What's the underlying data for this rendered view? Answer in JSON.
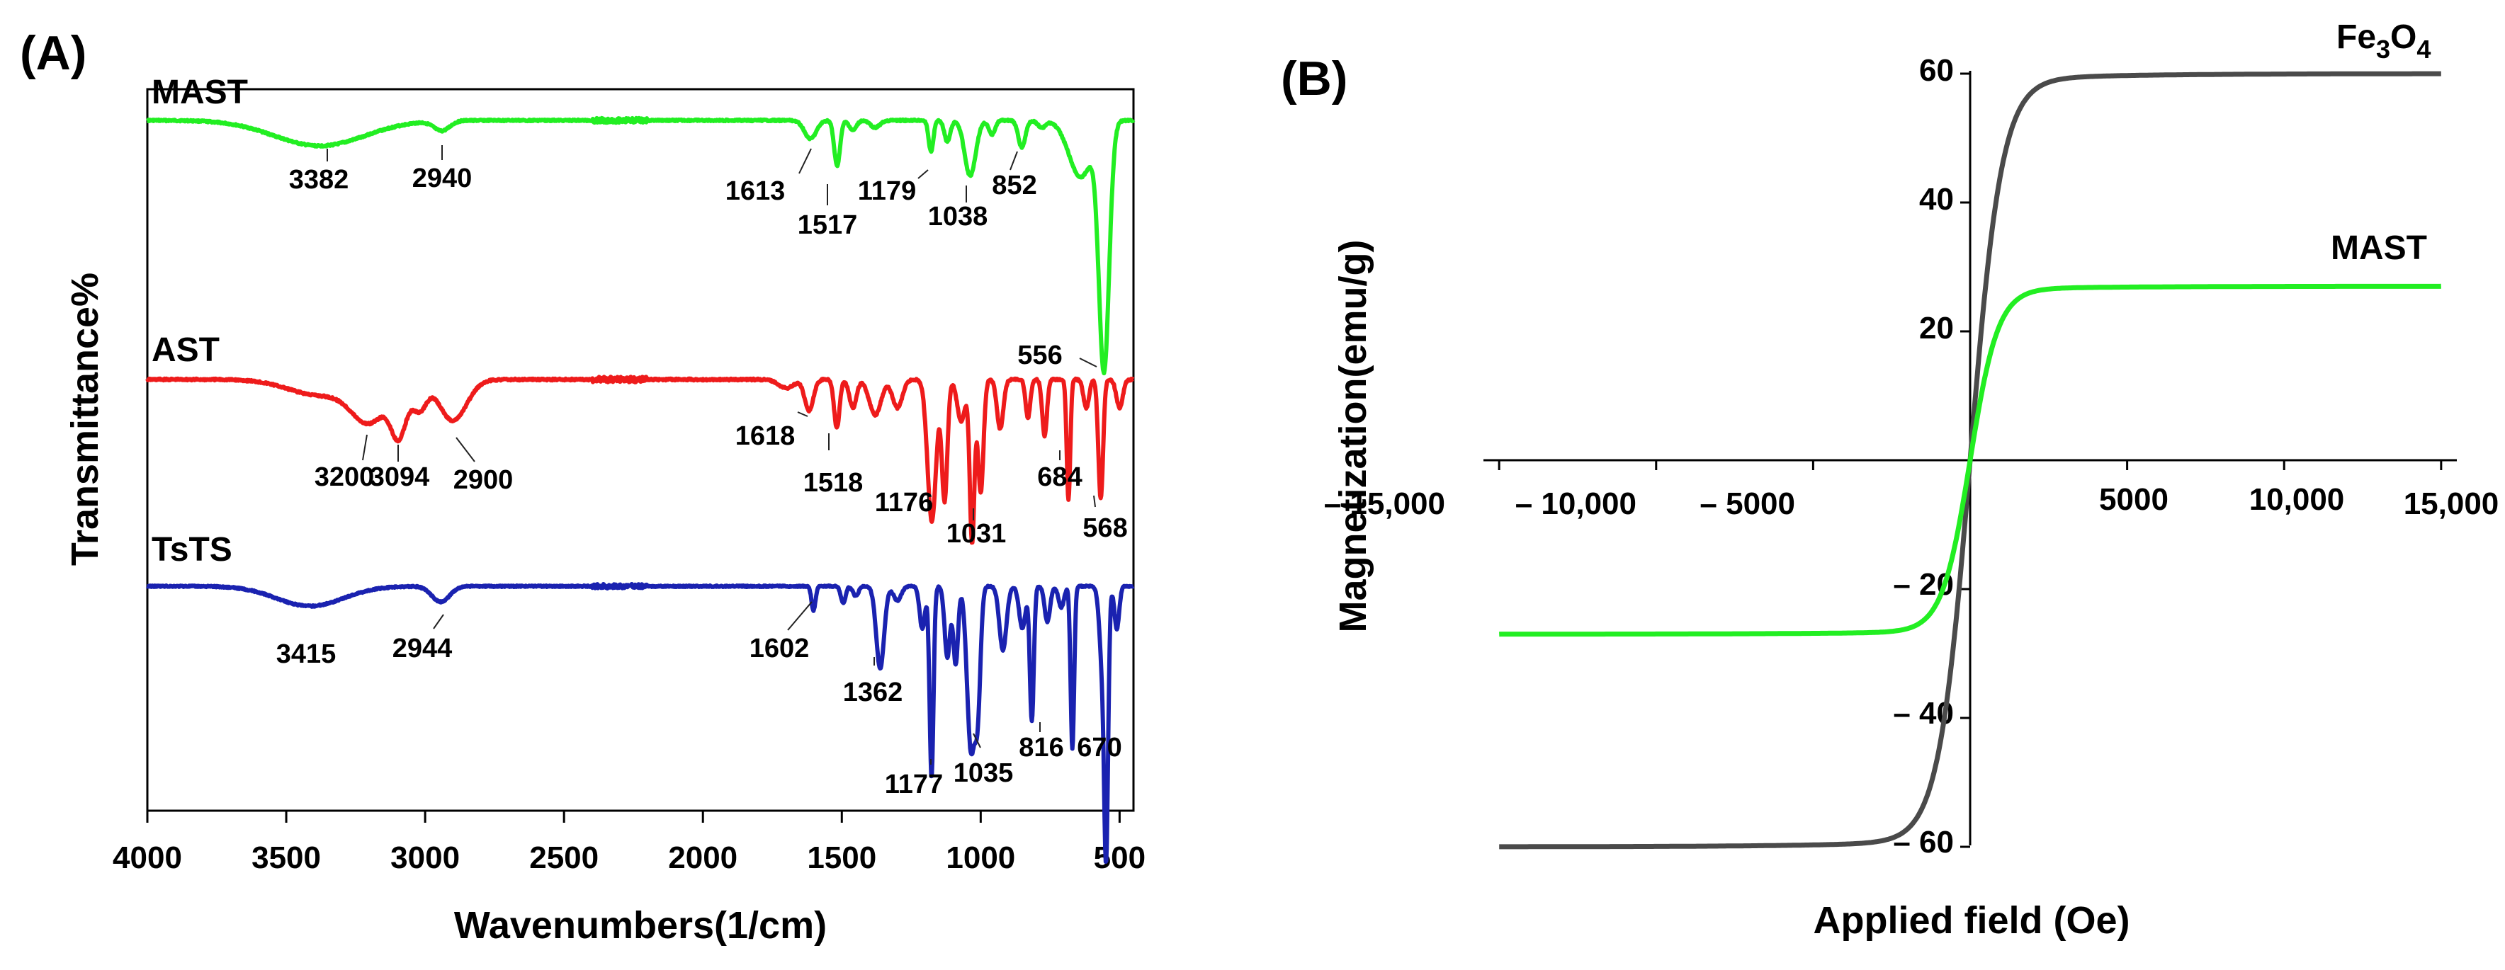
{
  "chart_data": [
    {
      "panel": "(A)",
      "type": "line",
      "title": "",
      "xlabel": "Wavenumbers(1/cm)",
      "ylabel": "Transmittance%",
      "xlim": [
        4000,
        450
      ],
      "x_ticks": [
        "4000",
        "3500",
        "3000",
        "2500",
        "2000",
        "1500",
        "1000",
        "500"
      ],
      "grid": false,
      "series": [
        {
          "name": "MAST",
          "color": "#22ee22",
          "peaks": [
            {
              "x": 3382,
              "label": "3382"
            },
            {
              "x": 2940,
              "label": "2940"
            },
            {
              "x": 1613,
              "label": "1613"
            },
            {
              "x": 1517,
              "label": "1517"
            },
            {
              "x": 1179,
              "label": "1179"
            },
            {
              "x": 1038,
              "label": "1038"
            },
            {
              "x": 852,
              "label": "852"
            },
            {
              "x": 556,
              "label": "556"
            }
          ]
        },
        {
          "name": "AST",
          "color": "#ee1b1b",
          "peaks": [
            {
              "x": 3200,
              "label": "3200"
            },
            {
              "x": 3094,
              "label": "3094"
            },
            {
              "x": 2900,
              "label": "2900"
            },
            {
              "x": 1618,
              "label": "1618"
            },
            {
              "x": 1518,
              "label": "1518"
            },
            {
              "x": 1176,
              "label": "1176"
            },
            {
              "x": 1031,
              "label": "1031"
            },
            {
              "x": 684,
              "label": "684"
            },
            {
              "x": 568,
              "label": "568"
            }
          ]
        },
        {
          "name": "TsTS",
          "color": "#1a22b0",
          "peaks": [
            {
              "x": 3415,
              "label": "3415"
            },
            {
              "x": 2944,
              "label": "2944"
            },
            {
              "x": 1602,
              "label": "1602"
            },
            {
              "x": 1362,
              "label": "1362"
            },
            {
              "x": 1177,
              "label": "1177"
            },
            {
              "x": 1035,
              "label": "1035"
            },
            {
              "x": 816,
              "label": "816"
            },
            {
              "x": 670,
              "label": "670"
            }
          ]
        }
      ]
    },
    {
      "panel": "(B)",
      "type": "line",
      "title": "",
      "xlabel": "Applied field (Oe)",
      "ylabel": "Magnetization(emu/g)",
      "xlim": [
        -15500,
        15500
      ],
      "ylim": [
        -60,
        60
      ],
      "x_ticks": [
        "– 15,000",
        "– 10,000",
        "– 5000",
        "5000",
        "10,000",
        "15,000"
      ],
      "y_ticks": [
        "60",
        "40",
        "20",
        "– 20",
        "– 40",
        "– 60"
      ],
      "grid": false,
      "series": [
        {
          "name": "Fe3O4",
          "label_main": "Fe",
          "label_sub1": "3",
          "label_o": "O",
          "label_sub2": "4",
          "color": "#4a4a4a",
          "ms": 60,
          "hk": 900
        },
        {
          "name": "MAST",
          "color": "#22ee22",
          "ms": 27,
          "hk": 800
        }
      ]
    }
  ]
}
